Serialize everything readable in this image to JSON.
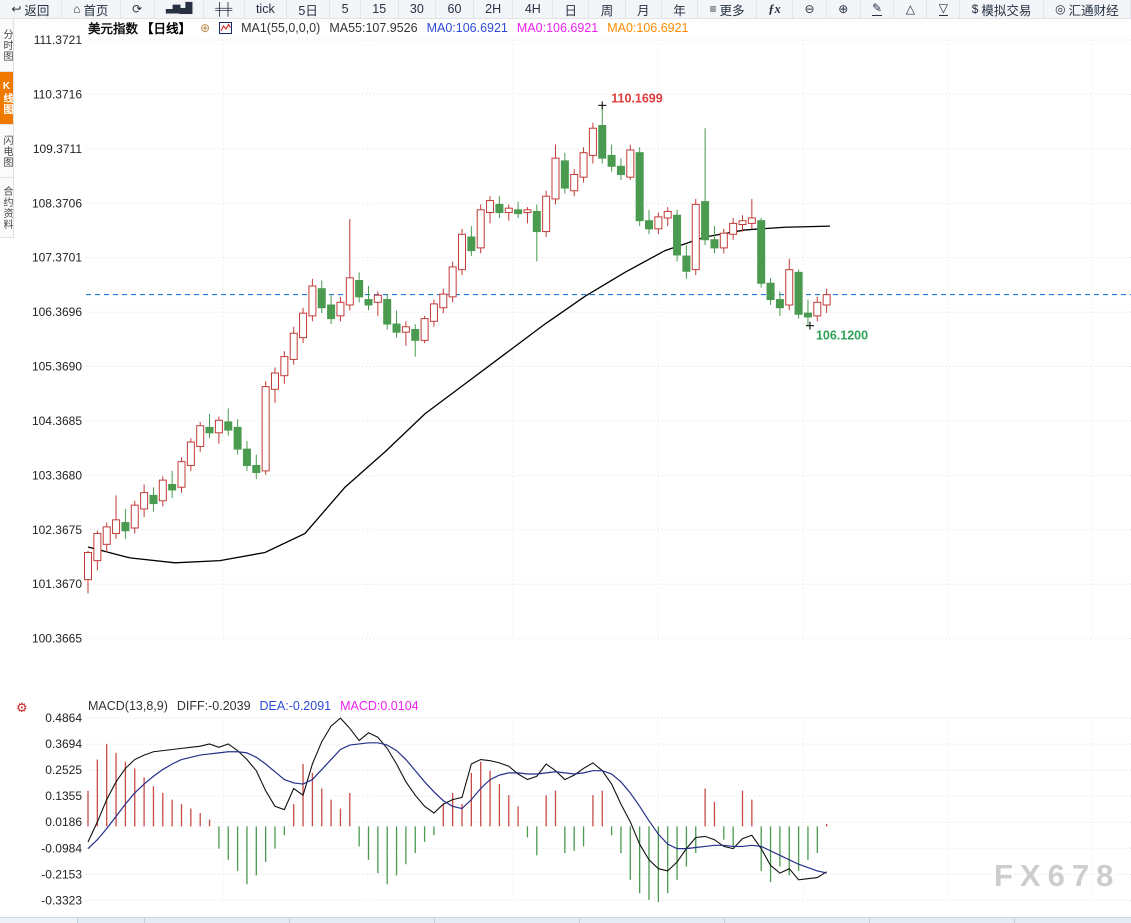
{
  "toolbar": {
    "items": [
      {
        "name": "back-button",
        "icon": "↩",
        "icon_name": "back-arrow-icon",
        "label": "返回"
      },
      {
        "name": "home-button",
        "icon": "⌂",
        "icon_name": "home-icon",
        "label": "首页"
      },
      {
        "name": "refresh-button",
        "icon": "⟳",
        "icon_name": "refresh-icon",
        "label": ""
      },
      {
        "name": "chart-type-button",
        "icon": "▃▆▄█",
        "icon_name": "bar-chart-icon",
        "label": "",
        "cls": "smallic"
      },
      {
        "name": "indicator-settings-button",
        "icon": "╪╪",
        "icon_name": "sliders-icon",
        "label": ""
      },
      {
        "name": "timeframe-tick-button",
        "label": "tick"
      },
      {
        "name": "timeframe-5d-button",
        "label": "5日"
      },
      {
        "name": "timeframe-5-button",
        "label": "5"
      },
      {
        "name": "timeframe-15-button",
        "label": "15"
      },
      {
        "name": "timeframe-30-button",
        "label": "30"
      },
      {
        "name": "timeframe-60-button",
        "label": "60"
      },
      {
        "name": "timeframe-2h-button",
        "label": "2H"
      },
      {
        "name": "timeframe-4h-button",
        "label": "4H"
      },
      {
        "name": "timeframe-day-button",
        "label": "日"
      },
      {
        "name": "timeframe-week-button",
        "label": "周"
      },
      {
        "name": "timeframe-month-button",
        "label": "月"
      },
      {
        "name": "timeframe-year-button",
        "label": "年"
      },
      {
        "name": "more-button",
        "icon": "≡",
        "icon_name": "menu-icon",
        "label": "更多"
      },
      {
        "name": "fx-indicator-button",
        "label": "ƒx",
        "cls": "fx"
      },
      {
        "name": "zoom-out-button",
        "icon": "⊖",
        "icon_name": "zoom-out-icon",
        "label": ""
      },
      {
        "name": "zoom-in-button",
        "icon": "⊕",
        "icon_name": "zoom-in-icon",
        "label": ""
      },
      {
        "name": "draw-line-button",
        "icon": "✎",
        "icon_name": "pencil-icon",
        "label": "",
        "cls": "u"
      },
      {
        "name": "triangle-up-tool-button",
        "icon": "△",
        "icon_name": "triangle-up-icon",
        "label": ""
      },
      {
        "name": "triangle-down-tool-button",
        "icon": "▽",
        "icon_name": "triangle-down-icon",
        "label": "",
        "cls": "u"
      },
      {
        "name": "simulated-trading-button",
        "icon": "$",
        "icon_name": "dollar-icon",
        "label": "模拟交易"
      },
      {
        "name": "fx678-brand-button",
        "icon": "◎",
        "icon_name": "fx678-logo-icon",
        "label": "汇通财经"
      }
    ]
  },
  "sidebar": {
    "items": [
      {
        "label": "分时图",
        "active": false
      },
      {
        "label": "K线图",
        "active": true
      },
      {
        "label": "闪电图",
        "active": false
      },
      {
        "label": "合约资料",
        "active": false
      }
    ]
  },
  "header": {
    "symbol": "美元指数",
    "period": "【日线】",
    "plus": "⊕",
    "ma_settings": "MA1(55,0,0,0)",
    "ma55": "MA55:107.9526",
    "ma0_blue": "MA0:106.6921",
    "ma0_magenta": "MA0:106.6921",
    "ma0_orange": "MA0:106.6921"
  },
  "macd_header": {
    "name": "MACD(13,8,9)",
    "diff": "DIFF:-0.2039",
    "dea": "DEA:-0.2091",
    "macd": "MACD:0.0104"
  },
  "watermark": "FX678",
  "colors": {
    "up": "#c23b38",
    "down": "#4a9a50",
    "ma_line": "#000000",
    "price_line": "#1f7ae0",
    "diff_line": "#111111",
    "dea_line": "#253089",
    "grid": "#dadada",
    "vgrid": "#e9e9e9",
    "annotation_high": "#e03c3c",
    "annotation_low": "#2fa257",
    "accent_orange": "#ff7f00",
    "ma0_blue": "#2e4bd8",
    "ma0_magenta": "#ee22ee",
    "ma0_orange": "#ff8c00",
    "axis_text": "#222222",
    "macd_bar_up": "#c84a46",
    "macd_bar_down": "#4a9a50",
    "gear": "#cc2222"
  },
  "chart_data": {
    "type": "candlestick",
    "title": "美元指数 日线 (US Dollar Index, daily)",
    "main": {
      "y_ticks": [
        "111.3721",
        "110.3716",
        "109.3711",
        "108.3706",
        "107.3701",
        "106.3696",
        "105.3690",
        "104.3685",
        "103.3680",
        "102.3675",
        "101.3670",
        "100.3665"
      ],
      "current_price": 106.6921,
      "ma55_value": 107.9526,
      "high_annotation": {
        "text": "110.1699",
        "value": 110.1699,
        "index": 55
      },
      "low_annotation": {
        "text": "106.1200",
        "value": 106.12,
        "index": 77
      },
      "candles": [
        [
          101.45,
          101.98,
          101.2,
          101.95
        ],
        [
          101.8,
          102.35,
          101.62,
          102.3
        ],
        [
          102.1,
          102.5,
          101.95,
          102.42
        ],
        [
          102.3,
          103.0,
          102.2,
          102.55
        ],
        [
          102.5,
          102.75,
          102.2,
          102.35
        ],
        [
          102.4,
          102.9,
          102.3,
          102.82
        ],
        [
          102.75,
          103.2,
          102.6,
          103.05
        ],
        [
          103.0,
          103.15,
          102.7,
          102.85
        ],
        [
          102.9,
          103.35,
          102.8,
          103.28
        ],
        [
          103.2,
          103.45,
          102.95,
          103.1
        ],
        [
          103.15,
          103.7,
          103.05,
          103.62
        ],
        [
          103.55,
          104.05,
          103.45,
          103.98
        ],
        [
          103.9,
          104.35,
          103.8,
          104.28
        ],
        [
          104.25,
          104.5,
          104.05,
          104.15
        ],
        [
          104.15,
          104.45,
          103.95,
          104.38
        ],
        [
          104.35,
          104.6,
          104.1,
          104.2
        ],
        [
          104.25,
          104.4,
          103.75,
          103.85
        ],
        [
          103.85,
          104.0,
          103.45,
          103.55
        ],
        [
          103.55,
          103.75,
          103.3,
          103.42
        ],
        [
          103.45,
          105.1,
          103.38,
          105.0
        ],
        [
          104.95,
          105.35,
          104.7,
          105.25
        ],
        [
          105.2,
          105.65,
          105.05,
          105.55
        ],
        [
          105.5,
          106.1,
          105.4,
          105.98
        ],
        [
          105.9,
          106.45,
          105.8,
          106.35
        ],
        [
          106.3,
          106.98,
          106.2,
          106.85
        ],
        [
          106.8,
          106.95,
          106.35,
          106.45
        ],
        [
          106.5,
          106.7,
          106.15,
          106.25
        ],
        [
          106.3,
          106.65,
          106.2,
          106.55
        ],
        [
          106.5,
          108.08,
          106.4,
          107.0
        ],
        [
          106.95,
          107.1,
          106.55,
          106.65
        ],
        [
          106.6,
          106.85,
          106.4,
          106.5
        ],
        [
          106.55,
          106.75,
          106.3,
          106.68
        ],
        [
          106.6,
          106.7,
          106.05,
          106.15
        ],
        [
          106.15,
          106.4,
          105.9,
          106.0
        ],
        [
          106.0,
          106.2,
          105.75,
          106.1
        ],
        [
          106.05,
          106.15,
          105.55,
          105.85
        ],
        [
          105.85,
          106.3,
          105.8,
          106.25
        ],
        [
          106.2,
          106.6,
          106.1,
          106.52
        ],
        [
          106.45,
          106.8,
          106.35,
          106.7
        ],
        [
          106.65,
          107.3,
          106.55,
          107.2
        ],
        [
          107.15,
          107.9,
          107.05,
          107.8
        ],
        [
          107.75,
          107.95,
          107.4,
          107.5
        ],
        [
          107.55,
          108.35,
          107.45,
          108.25
        ],
        [
          108.2,
          108.5,
          108.0,
          108.42
        ],
        [
          108.35,
          108.5,
          108.1,
          108.2
        ],
        [
          108.2,
          108.35,
          108.05,
          108.28
        ],
        [
          108.25,
          108.4,
          108.1,
          108.18
        ],
        [
          108.2,
          108.3,
          108.0,
          108.25
        ],
        [
          108.22,
          108.35,
          107.3,
          107.85
        ],
        [
          107.85,
          108.6,
          107.75,
          108.5
        ],
        [
          108.45,
          109.45,
          108.35,
          109.2
        ],
        [
          109.15,
          109.3,
          108.55,
          108.65
        ],
        [
          108.6,
          109.0,
          108.5,
          108.9
        ],
        [
          108.85,
          109.4,
          108.75,
          109.3
        ],
        [
          109.25,
          109.85,
          109.1,
          109.75
        ],
        [
          109.8,
          110.17,
          109.1,
          109.2
        ],
        [
          109.25,
          109.45,
          108.95,
          109.05
        ],
        [
          109.05,
          109.2,
          108.8,
          108.9
        ],
        [
          108.85,
          109.45,
          108.8,
          109.35
        ],
        [
          109.3,
          109.4,
          107.95,
          108.05
        ],
        [
          108.05,
          108.25,
          107.8,
          107.9
        ],
        [
          107.9,
          108.2,
          107.8,
          108.12
        ],
        [
          108.1,
          108.3,
          107.95,
          108.22
        ],
        [
          108.15,
          108.25,
          107.3,
          107.42
        ],
        [
          107.4,
          107.6,
          106.98,
          107.12
        ],
        [
          107.15,
          108.45,
          107.05,
          108.35
        ],
        [
          108.4,
          109.75,
          107.6,
          107.7
        ],
        [
          107.7,
          107.95,
          107.45,
          107.55
        ],
        [
          107.55,
          107.9,
          107.45,
          107.82
        ],
        [
          107.8,
          108.1,
          107.7,
          108.0
        ],
        [
          107.98,
          108.15,
          107.85,
          108.05
        ],
        [
          108.0,
          108.45,
          107.9,
          108.1
        ],
        [
          108.05,
          108.1,
          106.82,
          106.9
        ],
        [
          106.9,
          107.0,
          106.5,
          106.6
        ],
        [
          106.6,
          106.75,
          106.3,
          106.45
        ],
        [
          106.5,
          107.35,
          106.4,
          107.15
        ],
        [
          107.1,
          107.15,
          106.25,
          106.33
        ],
        [
          106.35,
          106.6,
          106.12,
          106.28
        ],
        [
          106.3,
          106.65,
          106.2,
          106.55
        ],
        [
          106.5,
          106.8,
          106.35,
          106.69
        ]
      ],
      "ma55_points": [
        [
          88,
          102.05
        ],
        [
          130,
          101.85
        ],
        [
          175,
          101.76
        ],
        [
          220,
          101.8
        ],
        [
          265,
          101.95
        ],
        [
          305,
          102.3
        ],
        [
          345,
          103.15
        ],
        [
          385,
          103.8
        ],
        [
          425,
          104.5
        ],
        [
          465,
          105.05
        ],
        [
          505,
          105.6
        ],
        [
          545,
          106.15
        ],
        [
          585,
          106.66
        ],
        [
          625,
          107.1
        ],
        [
          665,
          107.5
        ],
        [
          705,
          107.75
        ],
        [
          745,
          107.88
        ],
        [
          785,
          107.93
        ],
        [
          830,
          107.95
        ]
      ]
    },
    "macd": {
      "y_ticks": [
        "0.4864",
        "0.3694",
        "0.2525",
        "0.1355",
        "0.0186",
        "-0.0984",
        "-0.2153",
        "-0.3323"
      ],
      "histogram": [
        0.16,
        0.3,
        0.37,
        0.33,
        0.29,
        0.26,
        0.22,
        0.18,
        0.15,
        0.12,
        0.1,
        0.08,
        0.06,
        0.03,
        -0.1,
        -0.15,
        -0.2,
        -0.26,
        -0.22,
        -0.16,
        -0.1,
        -0.04,
        0.1,
        0.28,
        0.24,
        0.17,
        0.12,
        0.08,
        0.15,
        -0.09,
        -0.15,
        -0.21,
        -0.26,
        -0.22,
        -0.17,
        -0.12,
        -0.07,
        -0.04,
        0.1,
        0.15,
        0.1,
        0.24,
        0.29,
        0.25,
        0.19,
        0.14,
        0.09,
        -0.05,
        -0.13,
        0.14,
        0.16,
        -0.12,
        -0.11,
        -0.09,
        0.14,
        0.16,
        -0.04,
        -0.12,
        -0.24,
        -0.3,
        -0.33,
        -0.34,
        -0.3,
        -0.24,
        -0.18,
        -0.12,
        0.17,
        0.11,
        -0.06,
        -0.09,
        0.16,
        0.12,
        -0.2,
        -0.25,
        -0.18,
        -0.22,
        -0.2,
        -0.15,
        -0.12,
        0.0104
      ],
      "diff": [
        -0.07,
        0.02,
        0.12,
        0.2,
        0.26,
        0.3,
        0.32,
        0.335,
        0.34,
        0.345,
        0.35,
        0.355,
        0.36,
        0.37,
        0.355,
        0.37,
        0.34,
        0.3,
        0.25,
        0.16,
        0.09,
        0.075,
        0.17,
        0.14,
        0.28,
        0.38,
        0.45,
        0.486,
        0.44,
        0.385,
        0.42,
        0.4,
        0.35,
        0.28,
        0.2,
        0.14,
        0.09,
        0.06,
        0.1,
        0.12,
        0.13,
        0.28,
        0.3,
        0.295,
        0.285,
        0.27,
        0.235,
        0.21,
        0.225,
        0.28,
        0.25,
        0.21,
        0.23,
        0.26,
        0.285,
        0.25,
        0.19,
        0.1,
        0.02,
        -0.08,
        -0.15,
        -0.19,
        -0.2,
        -0.16,
        -0.1,
        -0.05,
        -0.045,
        -0.06,
        -0.09,
        -0.1,
        -0.055,
        -0.04,
        -0.1,
        -0.175,
        -0.21,
        -0.19,
        -0.24,
        -0.235,
        -0.23,
        -0.2039
      ],
      "dea": [
        -0.1,
        -0.06,
        -0.01,
        0.045,
        0.1,
        0.15,
        0.19,
        0.225,
        0.255,
        0.28,
        0.3,
        0.31,
        0.32,
        0.325,
        0.33,
        0.335,
        0.335,
        0.33,
        0.31,
        0.28,
        0.245,
        0.21,
        0.195,
        0.19,
        0.21,
        0.255,
        0.3,
        0.345,
        0.365,
        0.37,
        0.375,
        0.375,
        0.365,
        0.34,
        0.3,
        0.25,
        0.2,
        0.155,
        0.115,
        0.09,
        0.08,
        0.12,
        0.17,
        0.21,
        0.23,
        0.24,
        0.24,
        0.235,
        0.235,
        0.24,
        0.245,
        0.24,
        0.235,
        0.24,
        0.25,
        0.25,
        0.235,
        0.2,
        0.15,
        0.09,
        0.025,
        -0.035,
        -0.08,
        -0.1,
        -0.1,
        -0.095,
        -0.09,
        -0.085,
        -0.085,
        -0.09,
        -0.09,
        -0.085,
        -0.09,
        -0.11,
        -0.13,
        -0.15,
        -0.17,
        -0.185,
        -0.2,
        -0.2091
      ]
    }
  }
}
